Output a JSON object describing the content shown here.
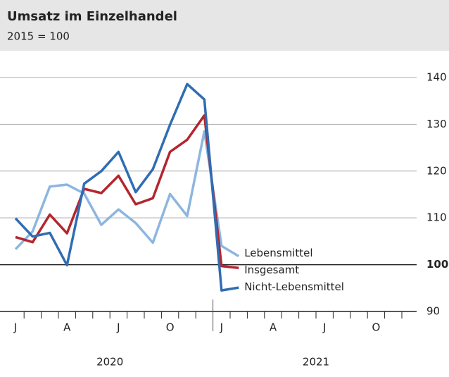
{
  "chart_data": {
    "type": "line",
    "title": "Umsatz im Einzelhandel",
    "subtitle": "2015 = 100",
    "categories": [
      "J",
      null,
      null,
      "A",
      null,
      null,
      "J",
      null,
      null,
      "O",
      null,
      null,
      "J",
      null,
      null,
      "A",
      null,
      null,
      "J",
      null,
      null,
      "O",
      null,
      null
    ],
    "years": [
      "2020",
      "2021"
    ],
    "series": [
      {
        "name": "Lebensmittel",
        "color": "#8cb6e0",
        "values": [
          103.3,
          107.1,
          116.7,
          117.1,
          115.2,
          108.5,
          111.8,
          108.9,
          104.7,
          115.1,
          110.4,
          128.5,
          104.0,
          101.8,
          null,
          null,
          null,
          null,
          null,
          null,
          null,
          null,
          null,
          null
        ]
      },
      {
        "name": "Insgesamt",
        "color": "#b3262f",
        "values": [
          105.9,
          104.8,
          110.7,
          106.7,
          116.2,
          115.3,
          119.0,
          112.9,
          114.2,
          124.1,
          126.7,
          131.9,
          99.7,
          99.3,
          null,
          null,
          null,
          null,
          null,
          null,
          null,
          null,
          null,
          null
        ]
      },
      {
        "name": "Nicht-Lebensmittel",
        "color": "#2f6db3",
        "values": [
          109.9,
          106.0,
          106.8,
          99.9,
          117.3,
          120.0,
          124.1,
          115.5,
          120.4,
          129.9,
          138.6,
          135.3,
          94.5,
          95.1,
          null,
          null,
          null,
          null,
          null,
          null,
          null,
          null,
          null,
          null
        ]
      }
    ],
    "ylim": [
      90,
      141.5
    ],
    "yticks": [
      90,
      100,
      110,
      120,
      130,
      140
    ],
    "baseline": 100,
    "grid": true
  }
}
